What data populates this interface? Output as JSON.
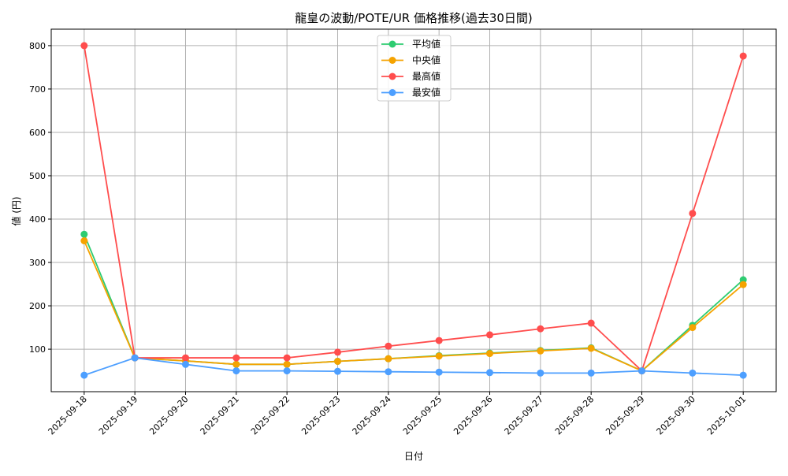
{
  "chart_data": {
    "type": "line",
    "title": "龍皇の波動/POTE/UR 価格推移(過去30日間)",
    "xlabel": "日付",
    "ylabel": "値 (円)",
    "x": [
      "2025-09-18",
      "2025-09-19",
      "2025-09-20",
      "2025-09-21",
      "2025-09-22",
      "2025-09-23",
      "2025-09-24",
      "2025-09-25",
      "2025-09-26",
      "2025-09-27",
      "2025-09-28",
      "2025-09-29",
      "2025-09-30",
      "2025-10-01"
    ],
    "ylim": [
      2,
      838
    ],
    "yticks": [
      100,
      200,
      300,
      400,
      500,
      600,
      700,
      800
    ],
    "grid": true,
    "legend_position": "top-center",
    "series": [
      {
        "name": "平均値",
        "color": "#2ecc71",
        "values": [
          365,
          80,
          73,
          65,
          65,
          72,
          78,
          85,
          91,
          97,
          103,
          50,
          155,
          260
        ]
      },
      {
        "name": "中央値",
        "color": "#f5a300",
        "values": [
          350,
          80,
          73,
          65,
          65,
          72,
          78,
          84,
          90,
          96,
          102,
          50,
          150,
          249
        ]
      },
      {
        "name": "最高値",
        "color": "#ff4d4d",
        "values": [
          800,
          80,
          80,
          80,
          80,
          93,
          107,
          120,
          133,
          147,
          160,
          50,
          413,
          776
        ]
      },
      {
        "name": "最安値",
        "color": "#4d9fff",
        "values": [
          40,
          80,
          65,
          50,
          50,
          49,
          48,
          47,
          46,
          45,
          45,
          50,
          45,
          40
        ]
      }
    ]
  }
}
